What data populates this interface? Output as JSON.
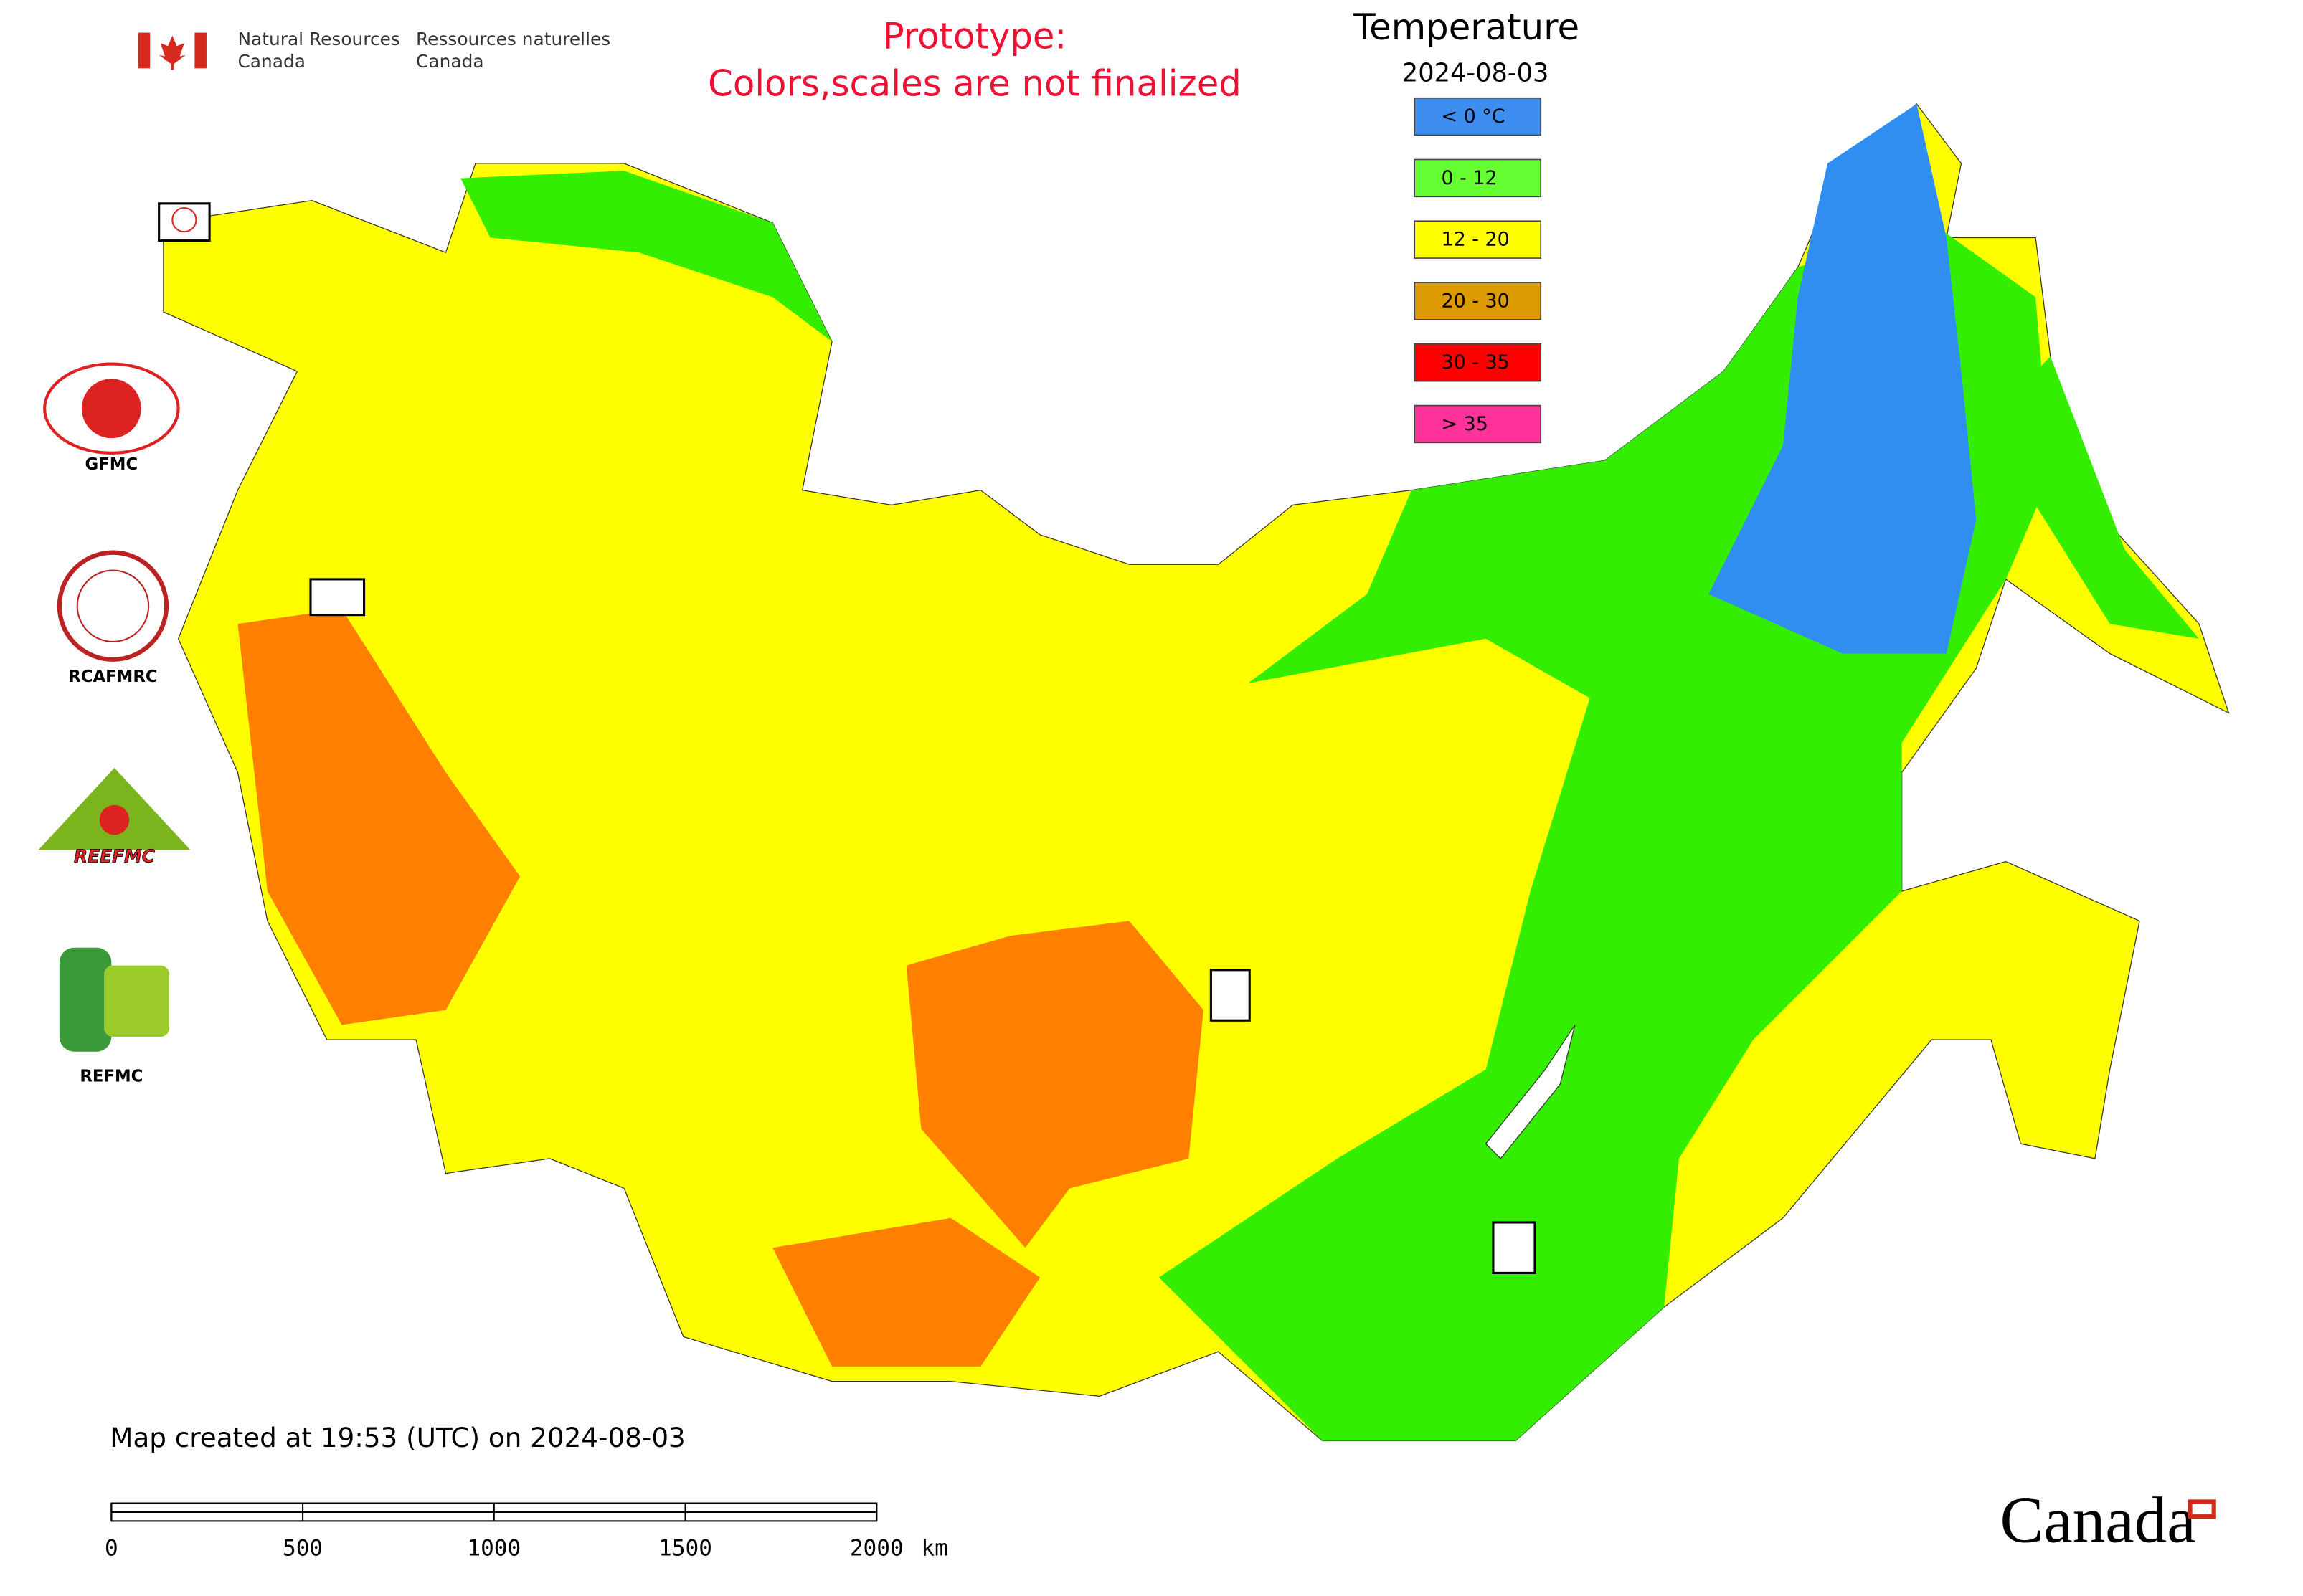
{
  "header": {
    "en": [
      "Natural Resources",
      "Canada"
    ],
    "fr": [
      "Ressources naturelles",
      "Canada"
    ]
  },
  "notice": [
    "Prototype:",
    "Colors,scales are not finalized"
  ],
  "legend": {
    "title": "Temperature",
    "date": "2024-08-03",
    "items": [
      {
        "label": "< 0 °C",
        "color": "#3d8ef0"
      },
      {
        "label": "0 - 12",
        "color": "#66ff33"
      },
      {
        "label": "12 - 20",
        "color": "#ffff00"
      },
      {
        "label": "20 - 30",
        "color": "#dd9900"
      },
      {
        "label": "30 - 35",
        "color": "#ff0000"
      },
      {
        "label": "> 35",
        "color": "#ff3399"
      }
    ]
  },
  "logos": [
    "GFMC",
    "RCAFMRC",
    "REEFMC",
    "REFMC"
  ],
  "footer": {
    "created": "Map created at 19:53 (UTC) on 2024-08-03",
    "wordmark": "Canada"
  },
  "scale_bar": {
    "ticks": [
      0,
      500,
      1000,
      1500,
      2000
    ],
    "unit": "km"
  }
}
